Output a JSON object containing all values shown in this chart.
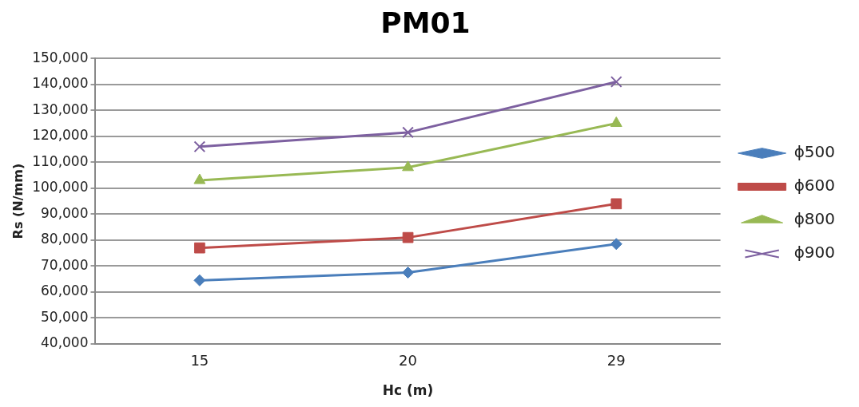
{
  "chart_data": {
    "type": "line",
    "title": "PM01",
    "xlabel": "Hc (m)",
    "ylabel": "Rs (N/mm)",
    "categories": [
      "15",
      "20",
      "29"
    ],
    "series": [
      {
        "name": "ϕ500",
        "color": "#4a7ebb",
        "marker": "diamond",
        "values": [
          64500,
          67500,
          78500
        ]
      },
      {
        "name": "ϕ600",
        "color": "#be4b48",
        "marker": "square",
        "values": [
          77000,
          81000,
          94000
        ]
      },
      {
        "name": "ϕ800",
        "color": "#98b954",
        "marker": "triangle",
        "values": [
          103000,
          108000,
          125000
        ]
      },
      {
        "name": "ϕ900",
        "color": "#7d60a0",
        "marker": "cross",
        "values": [
          116000,
          121500,
          141000
        ]
      }
    ],
    "ylim": [
      40000,
      150000
    ],
    "yticks": [
      {
        "value": 40000,
        "label": "40,000"
      },
      {
        "value": 50000,
        "label": "50,000"
      },
      {
        "value": 60000,
        "label": "60,000"
      },
      {
        "value": 70000,
        "label": "70,000"
      },
      {
        "value": 80000,
        "label": "80,000"
      },
      {
        "value": 90000,
        "label": "90,000"
      },
      {
        "value": 100000,
        "label": "100,000"
      },
      {
        "value": 110000,
        "label": "110,000"
      },
      {
        "value": 120000,
        "label": "120,000"
      },
      {
        "value": 130000,
        "label": "130,000"
      },
      {
        "value": 140000,
        "label": "140,000"
      },
      {
        "value": 150000,
        "label": "150,000"
      }
    ],
    "grid": "y",
    "legend": "right"
  }
}
